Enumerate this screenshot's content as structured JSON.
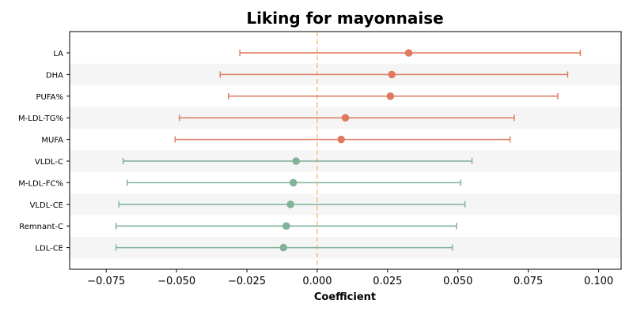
{
  "chart_data": {
    "type": "forest",
    "title": "Liking for mayonnaise",
    "xlabel": "Coefficient",
    "ylabel": "",
    "xlim": [
      -0.088,
      0.108
    ],
    "x_ticks": [
      -0.075,
      -0.05,
      -0.025,
      0.0,
      0.025,
      0.05,
      0.075,
      0.1
    ],
    "x_tick_labels": [
      "−0.075",
      "−0.050",
      "−0.025",
      "0.000",
      "0.025",
      "0.050",
      "0.075",
      "0.100"
    ],
    "reference_line": 0.0,
    "grid": false,
    "colors": {
      "positive": "#e07a5f",
      "negative": "#81b29a",
      "reference": "#f2c078",
      "band": "#f5f5f5"
    },
    "rows": [
      {
        "label": "LA",
        "estimate": 0.0325,
        "lower": -0.0275,
        "upper": 0.0935
      },
      {
        "label": "DHA",
        "estimate": 0.0265,
        "lower": -0.0345,
        "upper": 0.089
      },
      {
        "label": "PUFA%",
        "estimate": 0.026,
        "lower": -0.0315,
        "upper": 0.0855
      },
      {
        "label": "M-LDL-TG%",
        "estimate": 0.01,
        "lower": -0.049,
        "upper": 0.07
      },
      {
        "label": "MUFA",
        "estimate": 0.0085,
        "lower": -0.0505,
        "upper": 0.0685
      },
      {
        "label": "VLDL-C",
        "estimate": -0.0075,
        "lower": -0.069,
        "upper": 0.055
      },
      {
        "label": "M-LDL-FC%",
        "estimate": -0.0085,
        "lower": -0.0675,
        "upper": 0.051
      },
      {
        "label": "VLDL-CE",
        "estimate": -0.0095,
        "lower": -0.0705,
        "upper": 0.0525
      },
      {
        "label": "Remnant-C",
        "estimate": -0.011,
        "lower": -0.0715,
        "upper": 0.0495
      },
      {
        "label": "LDL-CE",
        "estimate": -0.012,
        "lower": -0.0715,
        "upper": 0.048
      }
    ]
  }
}
